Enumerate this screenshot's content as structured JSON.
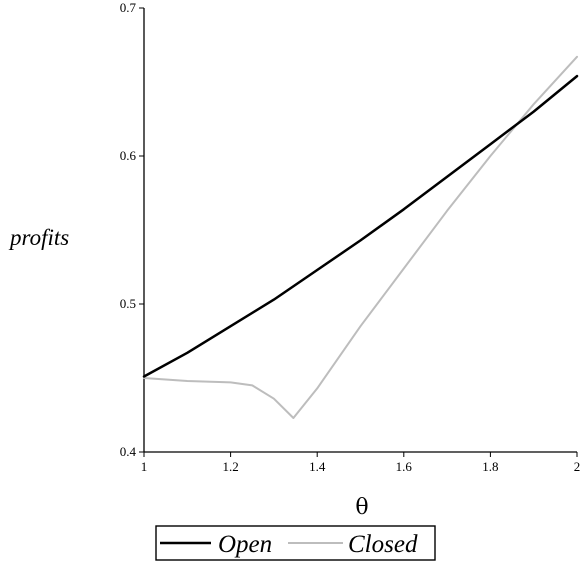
{
  "chart_data": {
    "type": "line",
    "title": "",
    "xlabel": "θ",
    "ylabel": "profits",
    "xlim": [
      1,
      2
    ],
    "ylim": [
      0.4,
      0.7
    ],
    "x_ticks": [
      1,
      1.2,
      1.4,
      1.6,
      1.8,
      2
    ],
    "x_tick_labels": [
      "1",
      "1.2",
      "1.4",
      "1.6",
      "1.8",
      "2"
    ],
    "y_ticks": [
      0.4,
      0.5,
      0.6,
      0.7
    ],
    "y_tick_labels": [
      "0.4",
      "0.5",
      "0.6",
      "0.7"
    ],
    "grid": false,
    "legend_position": "bottom",
    "series": [
      {
        "name": "Open",
        "color": "#000000",
        "x": [
          1.0,
          1.1,
          1.2,
          1.3,
          1.4,
          1.5,
          1.6,
          1.7,
          1.8,
          1.9,
          2.0
        ],
        "y": [
          0.451,
          0.467,
          0.485,
          0.503,
          0.523,
          0.543,
          0.564,
          0.586,
          0.608,
          0.63,
          0.654
        ]
      },
      {
        "name": "Closed",
        "color": "#bdbdbd",
        "x": [
          1.0,
          1.1,
          1.2,
          1.25,
          1.3,
          1.345,
          1.4,
          1.5,
          1.6,
          1.7,
          1.8,
          1.9,
          2.0
        ],
        "y": [
          0.45,
          0.448,
          0.447,
          0.445,
          0.436,
          0.423,
          0.443,
          0.485,
          0.524,
          0.563,
          0.6,
          0.635,
          0.667
        ]
      }
    ]
  }
}
